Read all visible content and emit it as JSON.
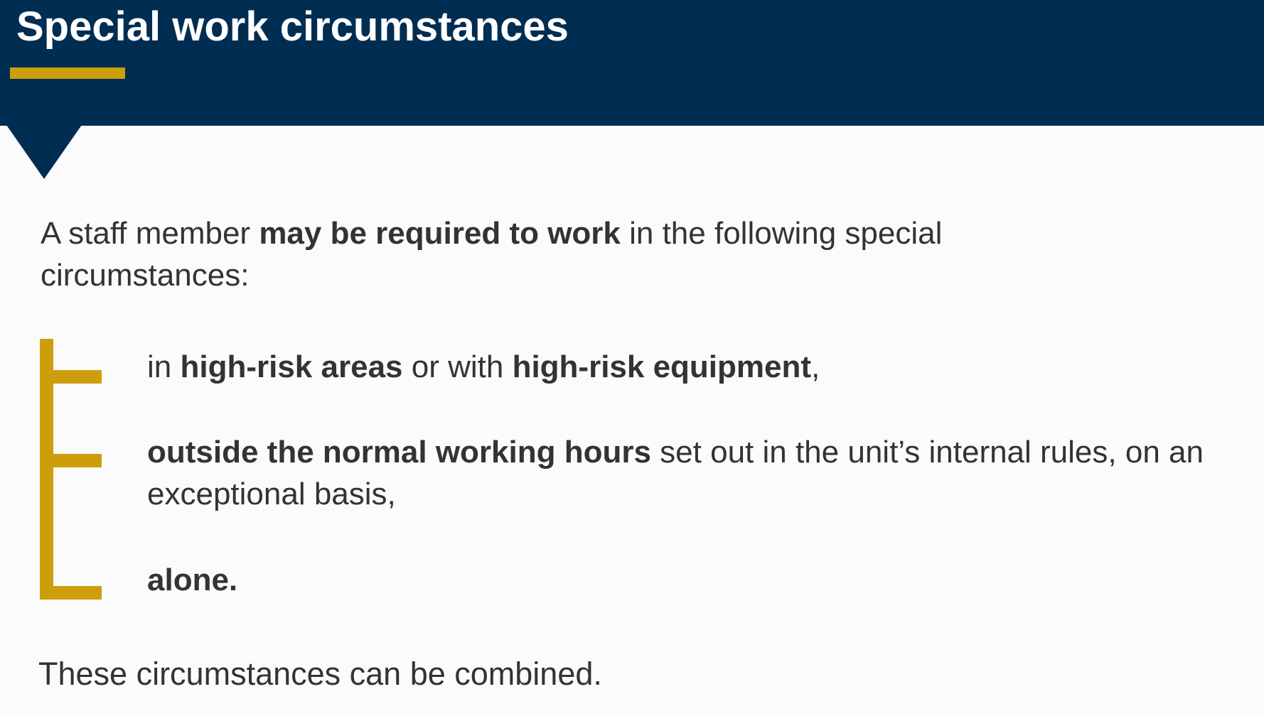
{
  "header": {
    "title": "Special work circumstances"
  },
  "intro": {
    "part1": "A staff member ",
    "bold": "may be required to work",
    "part2": " in the following special circumstances:"
  },
  "items": [
    {
      "t1": "in ",
      "b1": "high-risk areas",
      "t2": " or with ",
      "b2": "high-risk equipment",
      "t3": ","
    },
    {
      "b1": "outside the normal working hours",
      "t1": " set out in the unit’s internal rules, on an exceptional basis,"
    },
    {
      "b1": "alone."
    }
  ],
  "footer": {
    "text": "These circumstances can be combined."
  },
  "colors": {
    "header_bg": "#002d52",
    "accent": "#cc9e0b",
    "text": "#333333",
    "background": "#fbfbfb"
  }
}
